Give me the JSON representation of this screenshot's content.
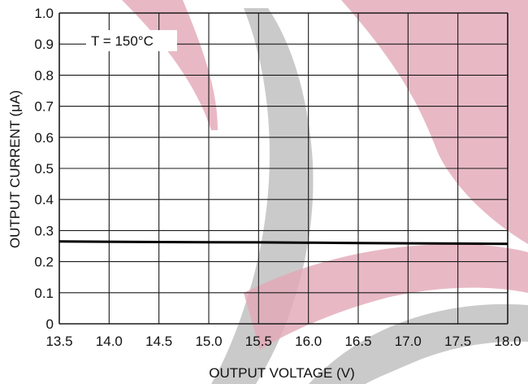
{
  "chart_data": {
    "type": "line",
    "xlabel": "OUTPUT VOLTAGE (V)",
    "ylabel": "OUTPUT CURRENT (μA)",
    "xlim": [
      13.5,
      18.0
    ],
    "ylim": [
      0,
      1.0
    ],
    "x_ticks": [
      "13.5",
      "14.0",
      "14.5",
      "15.0",
      "15.5",
      "16.0",
      "16.5",
      "17.0",
      "17.5",
      "18.0"
    ],
    "y_ticks": [
      "0",
      "0.1",
      "0.2",
      "0.3",
      "0.4",
      "0.5",
      "0.6",
      "0.7",
      "0.8",
      "0.9",
      "1.0"
    ],
    "grid": true,
    "annotation": "T = 150°C",
    "series": [
      {
        "x": [
          13.5,
          14.5,
          15.5,
          16.5,
          17.5,
          18.0
        ],
        "y": [
          0.265,
          0.263,
          0.262,
          0.26,
          0.258,
          0.257
        ],
        "color": "#000000"
      }
    ]
  },
  "watermark": {
    "red": "#e2a8b6",
    "gray": "#bdbdbd"
  }
}
